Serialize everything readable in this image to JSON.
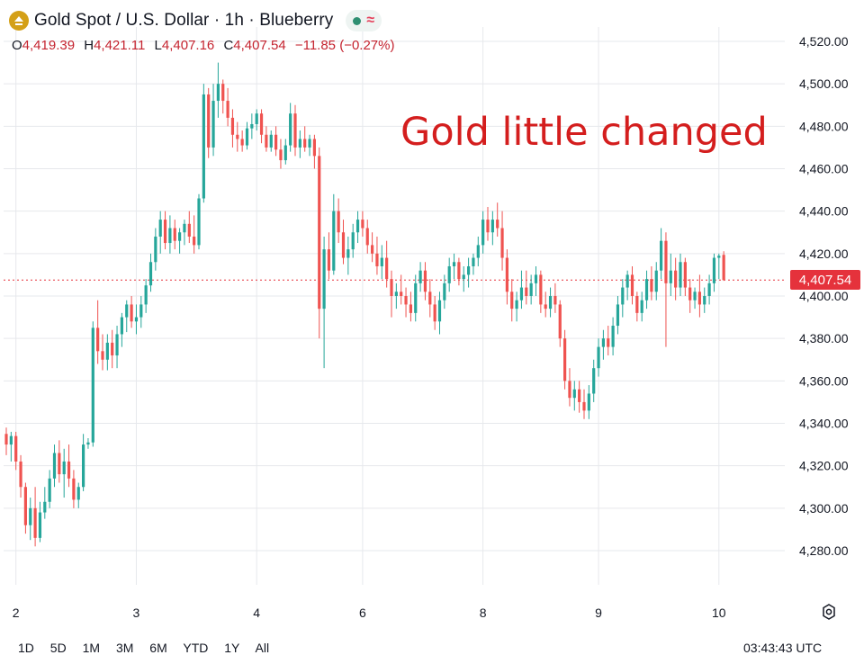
{
  "header": {
    "title": "Gold Spot / U.S. Dollar · 1h · Blueberry",
    "logo_icon": "gold-coin-icon",
    "status_icon": "market-open-dot-icon",
    "wave_icon": "approx-wave-icon"
  },
  "ohlc": {
    "o_key": "O",
    "o_val": "4,419.39",
    "h_key": "H",
    "h_val": "4,421.11",
    "l_key": "L",
    "l_val": "4,407.16",
    "c_key": "C",
    "c_val": "4,407.54",
    "change": "−11.85 (−0.27%)"
  },
  "annotation": "Gold little changed",
  "last_price_label": "4,407.54",
  "timeframes": [
    "1D",
    "5D",
    "1M",
    "3M",
    "6M",
    "YTD",
    "1Y",
    "All"
  ],
  "clock": "03:43:43 UTC",
  "colors": {
    "up": "#26a69a",
    "down": "#ef5350",
    "grid": "#e6e8ec",
    "price_line": "#e5323c"
  },
  "chart_data": {
    "type": "candlestick",
    "title": "Gold Spot / U.S. Dollar · 1h · Blueberry",
    "ylim": [
      4272,
      4530
    ],
    "yticks": [
      4280,
      4300,
      4320,
      4340,
      4360,
      4380,
      4400,
      4420,
      4440,
      4460,
      4480,
      4500,
      4520
    ],
    "ytick_labels": [
      "4,280.00",
      "4,300.00",
      "4,320.00",
      "4,340.00",
      "4,360.00",
      "4,380.00",
      "4,400.00",
      "4,420.00",
      "4,440.00",
      "4,460.00",
      "4,480.00",
      "4,500.00",
      "4,520.00"
    ],
    "xticks": [
      {
        "label": "2",
        "index": 2
      },
      {
        "label": "3",
        "index": 27
      },
      {
        "label": "4",
        "index": 52
      },
      {
        "label": "6",
        "index": 74
      },
      {
        "label": "8",
        "index": 99
      },
      {
        "label": "9",
        "index": 123
      },
      {
        "label": "10",
        "index": 148
      }
    ],
    "last_price": 4407.54,
    "grid": true,
    "candles": [
      [
        4335,
        4338,
        4325,
        4330
      ],
      [
        4330,
        4336,
        4322,
        4334
      ],
      [
        4334,
        4336,
        4318,
        4322
      ],
      [
        4322,
        4325,
        4305,
        4310
      ],
      [
        4310,
        4312,
        4288,
        4292
      ],
      [
        4292,
        4305,
        4285,
        4300
      ],
      [
        4300,
        4310,
        4282,
        4286
      ],
      [
        4286,
        4303,
        4284,
        4298
      ],
      [
        4298,
        4310,
        4295,
        4303
      ],
      [
        4303,
        4318,
        4300,
        4314
      ],
      [
        4314,
        4330,
        4310,
        4326
      ],
      [
        4326,
        4332,
        4312,
        4316
      ],
      [
        4316,
        4328,
        4305,
        4322
      ],
      [
        4322,
        4330,
        4310,
        4314
      ],
      [
        4314,
        4318,
        4300,
        4304
      ],
      [
        4304,
        4312,
        4300,
        4310
      ],
      [
        4310,
        4335,
        4308,
        4330
      ],
      [
        4330,
        4333,
        4328,
        4331
      ],
      [
        4331,
        4388,
        4329,
        4385
      ],
      [
        4385,
        4398,
        4368,
        4374
      ],
      [
        4374,
        4382,
        4365,
        4370
      ],
      [
        4370,
        4382,
        4365,
        4378
      ],
      [
        4378,
        4384,
        4366,
        4372
      ],
      [
        4372,
        4386,
        4366,
        4382
      ],
      [
        4382,
        4392,
        4376,
        4390
      ],
      [
        4390,
        4398,
        4383,
        4396
      ],
      [
        4396,
        4400,
        4385,
        4388
      ],
      [
        4388,
        4396,
        4382,
        4390
      ],
      [
        4390,
        4400,
        4385,
        4396
      ],
      [
        4396,
        4408,
        4392,
        4405
      ],
      [
        4405,
        4420,
        4402,
        4416
      ],
      [
        4416,
        4432,
        4412,
        4428
      ],
      [
        4428,
        4440,
        4420,
        4436
      ],
      [
        4436,
        4440,
        4422,
        4425
      ],
      [
        4425,
        4438,
        4420,
        4432
      ],
      [
        4432,
        4436,
        4422,
        4426
      ],
      [
        4426,
        4432,
        4420,
        4430
      ],
      [
        4430,
        4436,
        4424,
        4434
      ],
      [
        4434,
        4440,
        4425,
        4428
      ],
      [
        4428,
        4438,
        4420,
        4424
      ],
      [
        4424,
        4448,
        4422,
        4446
      ],
      [
        4446,
        4500,
        4444,
        4495
      ],
      [
        4495,
        4498,
        4465,
        4470
      ],
      [
        4470,
        4500,
        4466,
        4492
      ],
      [
        4492,
        4510,
        4484,
        4500
      ],
      [
        4500,
        4502,
        4486,
        4492
      ],
      [
        4492,
        4498,
        4480,
        4484
      ],
      [
        4484,
        4488,
        4470,
        4476
      ],
      [
        4476,
        4482,
        4468,
        4474
      ],
      [
        4474,
        4478,
        4468,
        4471
      ],
      [
        4471,
        4482,
        4469,
        4479
      ],
      [
        4479,
        4486,
        4474,
        4481
      ],
      [
        4481,
        4488,
        4478,
        4486
      ],
      [
        4486,
        4488,
        4472,
        4476
      ],
      [
        4476,
        4480,
        4468,
        4470
      ],
      [
        4470,
        4478,
        4468,
        4476
      ],
      [
        4476,
        4480,
        4466,
        4469
      ],
      [
        4469,
        4474,
        4460,
        4464
      ],
      [
        4464,
        4474,
        4462,
        4471
      ],
      [
        4471,
        4491,
        4468,
        4486
      ],
      [
        4486,
        4490,
        4466,
        4470
      ],
      [
        4470,
        4478,
        4465,
        4474
      ],
      [
        4474,
        4480,
        4468,
        4470
      ],
      [
        4470,
        4476,
        4466,
        4474
      ],
      [
        4474,
        4476,
        4460,
        4466
      ],
      [
        4466,
        4470,
        4380,
        4394
      ],
      [
        4394,
        4428,
        4366,
        4422
      ],
      [
        4422,
        4430,
        4408,
        4412
      ],
      [
        4412,
        4448,
        4410,
        4440
      ],
      [
        4440,
        4446,
        4425,
        4430
      ],
      [
        4430,
        4436,
        4415,
        4418
      ],
      [
        4418,
        4428,
        4410,
        4422
      ],
      [
        4422,
        4434,
        4418,
        4430
      ],
      [
        4430,
        4440,
        4425,
        4436
      ],
      [
        4436,
        4440,
        4428,
        4432
      ],
      [
        4432,
        4436,
        4420,
        4424
      ],
      [
        4424,
        4430,
        4416,
        4420
      ],
      [
        4420,
        4428,
        4410,
        4414
      ],
      [
        4414,
        4424,
        4408,
        4418
      ],
      [
        4418,
        4426,
        4404,
        4408
      ],
      [
        4408,
        4412,
        4390,
        4400
      ],
      [
        4400,
        4406,
        4394,
        4402
      ],
      [
        4402,
        4410,
        4396,
        4400
      ],
      [
        4400,
        4404,
        4390,
        4396
      ],
      [
        4396,
        4402,
        4388,
        4392
      ],
      [
        4392,
        4410,
        4388,
        4406
      ],
      [
        4406,
        4416,
        4402,
        4412
      ],
      [
        4412,
        4416,
        4398,
        4402
      ],
      [
        4402,
        4408,
        4390,
        4396
      ],
      [
        4396,
        4400,
        4384,
        4388
      ],
      [
        4388,
        4402,
        4382,
        4398
      ],
      [
        4398,
        4410,
        4394,
        4406
      ],
      [
        4406,
        4418,
        4402,
        4414
      ],
      [
        4414,
        4420,
        4408,
        4416
      ],
      [
        4416,
        4418,
        4405,
        4408
      ],
      [
        4408,
        4414,
        4402,
        4410
      ],
      [
        4410,
        4418,
        4404,
        4414
      ],
      [
        4414,
        4420,
        4410,
        4418
      ],
      [
        4418,
        4428,
        4414,
        4424
      ],
      [
        4424,
        4440,
        4420,
        4436
      ],
      [
        4436,
        4442,
        4426,
        4430
      ],
      [
        4430,
        4440,
        4424,
        4436
      ],
      [
        4436,
        4444,
        4428,
        4432
      ],
      [
        4432,
        4440,
        4412,
        4418
      ],
      [
        4418,
        4422,
        4396,
        4402
      ],
      [
        4402,
        4408,
        4388,
        4394
      ],
      [
        4394,
        4402,
        4388,
        4398
      ],
      [
        4398,
        4412,
        4394,
        4404
      ],
      [
        4404,
        4412,
        4396,
        4400
      ],
      [
        4400,
        4410,
        4396,
        4406
      ],
      [
        4406,
        4414,
        4400,
        4410
      ],
      [
        4410,
        4412,
        4392,
        4396
      ],
      [
        4396,
        4402,
        4390,
        4394
      ],
      [
        4394,
        4404,
        4390,
        4400
      ],
      [
        4400,
        4406,
        4392,
        4396
      ],
      [
        4396,
        4398,
        4376,
        4380
      ],
      [
        4380,
        4384,
        4356,
        4360
      ],
      [
        4360,
        4366,
        4348,
        4352
      ],
      [
        4352,
        4360,
        4346,
        4356
      ],
      [
        4356,
        4360,
        4345,
        4350
      ],
      [
        4350,
        4356,
        4342,
        4346
      ],
      [
        4346,
        4358,
        4342,
        4354
      ],
      [
        4354,
        4370,
        4350,
        4366
      ],
      [
        4366,
        4380,
        4362,
        4376
      ],
      [
        4376,
        4384,
        4370,
        4380
      ],
      [
        4380,
        4386,
        4372,
        4376
      ],
      [
        4376,
        4390,
        4372,
        4386
      ],
      [
        4386,
        4400,
        4382,
        4396
      ],
      [
        4396,
        4408,
        4390,
        4404
      ],
      [
        4404,
        4412,
        4398,
        4410
      ],
      [
        4410,
        4414,
        4396,
        4400
      ],
      [
        4400,
        4402,
        4388,
        4392
      ],
      [
        4392,
        4402,
        4388,
        4398
      ],
      [
        4398,
        4412,
        4394,
        4408
      ],
      [
        4408,
        4414,
        4398,
        4402
      ],
      [
        4402,
        4416,
        4398,
        4412
      ],
      [
        4412,
        4432,
        4408,
        4426
      ],
      [
        4426,
        4430,
        4376,
        4406
      ],
      [
        4406,
        4420,
        4400,
        4412
      ],
      [
        4412,
        4418,
        4398,
        4404
      ],
      [
        4404,
        4420,
        4400,
        4416
      ],
      [
        4416,
        4418,
        4400,
        4404
      ],
      [
        4404,
        4408,
        4392,
        4398
      ],
      [
        4398,
        4404,
        4394,
        4402
      ],
      [
        4402,
        4410,
        4390,
        4396
      ],
      [
        4396,
        4404,
        4392,
        4400
      ],
      [
        4400,
        4410,
        4396,
        4406
      ],
      [
        4406,
        4420,
        4402,
        4418
      ],
      [
        4418,
        4420,
        4408,
        4419
      ],
      [
        4419.39,
        4421.11,
        4407.16,
        4407.54
      ]
    ]
  }
}
